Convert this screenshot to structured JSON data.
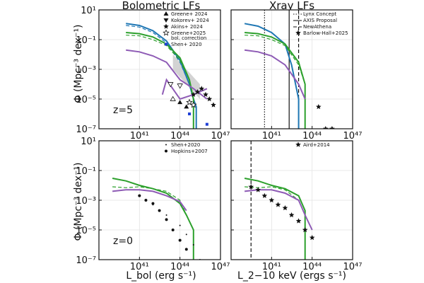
{
  "figure": {
    "background": "#ffffff",
    "titles": [
      "Bolometric LFs",
      "Xray LFs"
    ],
    "ylabel": "Φ (Mpc⁻³ dex⁻¹)",
    "xlabels": [
      "L_bol (erg s⁻¹)",
      "L_2−10 keV (ergs s⁻¹)"
    ],
    "colors": {
      "blue": "#1f77b4",
      "green": "#2ca02c",
      "purple": "#8e5bb5",
      "grey": "#c8c8c8",
      "axis": "#111111"
    }
  },
  "chart_data": [
    {
      "id": "bol_z5",
      "type": "line",
      "log_scale": {
        "x": true,
        "y": true
      },
      "xlim": [
        1e+38,
        1e+47
      ],
      "ylim": [
        1e-07,
        10
      ],
      "xticks": [
        "10⁴¹",
        "10⁴⁴",
        "10⁴⁷"
      ],
      "yticks": [
        "10¹",
        "10⁻¹",
        "10⁻³",
        "10⁻⁵",
        "10⁻⁷"
      ],
      "grid": true,
      "annotation": "z=5",
      "legend": {
        "placement": "top-right",
        "entries": [
          {
            "marker": "triangle-up",
            "label": "Greene+ 2024"
          },
          {
            "marker": "triangle-down",
            "label": "Kokorev+ 2024"
          },
          {
            "marker": "star",
            "label": "Akins+ 2024"
          },
          {
            "marker": "star-open",
            "label": "Greene+2025"
          },
          {
            "marker": "none",
            "label": "bol. correction"
          },
          {
            "marker": "square-blue",
            "label": "Shen+ 2020"
          }
        ]
      },
      "series": [
        {
          "color": "blue",
          "style": "solid",
          "x": [
            1e+40,
            1e+41,
            1e+42,
            1e+43,
            1e+44,
            5e+44,
            1e+45,
            1.6e+45,
            1.6e+45
          ],
          "y": [
            1.2,
            0.9,
            0.4,
            0.08,
            0.004,
            0.0001,
            1e-05,
            3e-06,
            1e-07
          ]
        },
        {
          "color": "blue",
          "style": "dashed",
          "x": [
            1e+40,
            1e+41,
            1e+42,
            1e+43,
            1e+44,
            5e+44,
            1e+45
          ],
          "y": [
            0.9,
            0.7,
            0.3,
            0.06,
            0.003,
            0.0001,
            1e-05
          ]
        },
        {
          "color": "green",
          "style": "solid",
          "x": [
            1e+40,
            1e+41,
            1e+42,
            1e+43,
            1e+44,
            5e+44,
            1e+45,
            1e+45
          ],
          "y": [
            0.3,
            0.25,
            0.15,
            0.05,
            0.006,
            0.0002,
            1e-05,
            1e-07
          ]
        },
        {
          "color": "green",
          "style": "dashed",
          "x": [
            1e+40,
            1e+41,
            1e+42,
            1e+43,
            1e+44,
            5e+44
          ],
          "y": [
            0.2,
            0.18,
            0.1,
            0.04,
            0.004,
            0.0002
          ]
        },
        {
          "color": "purple",
          "style": "solid",
          "x": [
            1e+40,
            1e+41,
            1e+42,
            1e+43,
            1e+44,
            1e+45,
            1e+46
          ],
          "y": [
            0.02,
            0.015,
            0.008,
            0.003,
            0.0002,
            5e-05,
            1e-05
          ]
        },
        {
          "color": "purple",
          "style": "solid",
          "x": [
            5e+42,
            1e+43,
            1e+44,
            1e+45,
            1e+46
          ],
          "y": [
            2e-05,
            0.0002,
            1e-05,
            2e-05,
            5e-05
          ]
        }
      ],
      "points": {
        "triangle-up": [
          [
            1e+44,
            6e-06
          ],
          [
            3e+44,
            3e-06
          ]
        ],
        "triangle-open": [
          [
            3e+43,
            1e-05
          ]
        ],
        "triangle-down-open": [
          [
            2e+43,
            0.0001
          ],
          [
            1e+44,
            8e-05
          ]
        ],
        "star": [
          [
            1e+45,
            2e-05
          ],
          [
            2e+45,
            3e-05
          ],
          [
            4e+45,
            5e-05
          ],
          [
            8e+45,
            2e-05
          ],
          [
            1.5e+46,
            1e-05
          ],
          [
            3e+46,
            4e-06
          ]
        ],
        "star-open": [
          [
            5e+44,
            6e-06
          ],
          [
            1e+45,
            4e-06
          ]
        ],
        "square-blue": [
          [
            5e+44,
            1e-06
          ],
          [
            1e+46,
            2e-07
          ]
        ]
      },
      "band": {
        "x": [
          3e+43,
          3e+44,
          3e+45
        ],
        "y_low": [
          0.001,
          0.0001,
          1e-05
        ],
        "y_high": [
          0.01,
          0.001,
          0.0001
        ]
      }
    },
    {
      "id": "xray_z5",
      "type": "line",
      "log_scale": {
        "x": true,
        "y": true
      },
      "xlim": [
        1e+38,
        1e+47
      ],
      "ylim": [
        1e-07,
        10
      ],
      "xticks": [
        "10⁴¹",
        "10⁴⁴",
        "10⁴⁷"
      ],
      "grid": true,
      "legend": {
        "placement": "top-right",
        "entries": [
          {
            "style": "dotted",
            "label": "Lynx Concept"
          },
          {
            "style": "solid",
            "label": "AXIS Proposal"
          },
          {
            "style": "dashed",
            "label": "NewAthena"
          },
          {
            "marker": "star",
            "label": "Barlow-Hall+2025"
          }
        ]
      },
      "vlines": [
        {
          "x": 3e+40,
          "style": "dotted"
        },
        {
          "x": 2e+42,
          "style": "solid"
        },
        {
          "x": 1e+43,
          "style": "dashed"
        }
      ],
      "series": [
        {
          "color": "blue",
          "style": "solid",
          "x": [
            1e+39,
            1e+40,
            1e+41,
            1e+42,
            3e+42,
            1e+43,
            1e+43
          ],
          "y": [
            1.2,
            0.8,
            0.3,
            0.05,
            0.002,
            1e-05,
            1e-07
          ]
        },
        {
          "color": "green",
          "style": "solid",
          "x": [
            1e+39,
            1e+40,
            1e+41,
            1e+42,
            1e+43,
            3e+43,
            3e+43
          ],
          "y": [
            0.3,
            0.25,
            0.15,
            0.05,
            0.003,
            0.0001,
            1e-07
          ]
        },
        {
          "color": "green",
          "style": "dashed",
          "x": [
            1e+39,
            1e+40,
            1e+41,
            1e+42,
            1e+43,
            3e+43
          ],
          "y": [
            0.2,
            0.18,
            0.1,
            0.04,
            0.002,
            0.0001
          ]
        },
        {
          "color": "purple",
          "style": "solid",
          "x": [
            1e+39,
            1e+40,
            1e+41,
            1e+42,
            1e+43,
            3e+43
          ],
          "y": [
            0.02,
            0.015,
            0.008,
            0.002,
            0.0001,
            1e-05
          ]
        }
      ],
      "points": {
        "star": [
          [
            3e+44,
            3e-06
          ],
          [
            1e+45,
            1e-07
          ],
          [
            3e+45,
            1e-07
          ]
        ]
      }
    },
    {
      "id": "bol_z0",
      "type": "line",
      "log_scale": {
        "x": true,
        "y": true
      },
      "xlim": [
        1e+38,
        1e+47
      ],
      "ylim": [
        1e-07,
        10
      ],
      "xticks": [
        "10⁴¹",
        "10⁴⁴",
        "10⁴⁷"
      ],
      "yticks": [
        "10¹",
        "10⁻¹",
        "10⁻³",
        "10⁻⁵",
        "10⁻⁷"
      ],
      "grid": true,
      "annotation": "z=0",
      "legend": {
        "placement": "top-right",
        "entries": [
          {
            "marker": "dot-small",
            "label": "Shen+2020"
          },
          {
            "marker": "dot",
            "label": "Hopkins+2007"
          }
        ]
      },
      "series": [
        {
          "color": "green",
          "style": "solid",
          "x": [
            1e+39,
            1e+40,
            1e+41,
            1e+42,
            1e+43,
            1e+44,
            3e+44,
            1e+45,
            1e+45
          ],
          "y": [
            0.03,
            0.02,
            0.01,
            0.006,
            0.003,
            0.0006,
            0.0001,
            1e-05,
            1e-07
          ]
        },
        {
          "color": "green",
          "style": "dashed",
          "x": [
            1e+39,
            1e+40,
            1e+41,
            1e+42,
            1e+43,
            1e+44,
            3e+44
          ],
          "y": [
            0.008,
            0.007,
            0.008,
            0.006,
            0.004,
            0.001,
            0.0001
          ]
        },
        {
          "color": "purple",
          "style": "solid",
          "x": [
            1e+39,
            1e+40,
            1e+41,
            1e+42,
            1e+43,
            1e+44,
            3e+44
          ],
          "y": [
            0.004,
            0.005,
            0.005,
            0.004,
            0.002,
            0.0008,
            0.0002
          ]
        }
      ],
      "points": {
        "dot": [
          [
            1e+41,
            0.002
          ],
          [
            3e+41,
            0.001
          ],
          [
            1e+42,
            0.0006
          ],
          [
            3e+42,
            0.0002
          ],
          [
            1e+43,
            5e-05
          ],
          [
            3e+43,
            1e-05
          ],
          [
            1e+44,
            2e-06
          ],
          [
            3e+44,
            5e-07
          ]
        ],
        "dot-small": [
          [
            1e+42,
            0.0005
          ],
          [
            1e+43,
            0.0001
          ],
          [
            1e+44,
            2e-05
          ],
          [
            3e+44,
            5e-06
          ],
          [
            1e+45,
            1e-06
          ],
          [
            3e+45,
            1e-07
          ]
        ]
      }
    },
    {
      "id": "xray_z0",
      "type": "line",
      "log_scale": {
        "x": true,
        "y": true
      },
      "xlim": [
        1e+38,
        1e+47
      ],
      "ylim": [
        1e-07,
        10
      ],
      "xticks": [
        "10⁴¹",
        "10⁴⁴",
        "10⁴⁷"
      ],
      "grid": true,
      "legend": {
        "placement": "top-right",
        "entries": [
          {
            "marker": "star",
            "label": "Aird+2014"
          }
        ]
      },
      "vlines": [
        {
          "x": 3e+39,
          "style": "dashed"
        }
      ],
      "series": [
        {
          "color": "green",
          "style": "solid",
          "x": [
            1e+39,
            1e+40,
            1e+41,
            1e+42,
            1e+43,
            3e+43,
            3e+43
          ],
          "y": [
            0.03,
            0.02,
            0.01,
            0.006,
            0.002,
            0.0002,
            1e-07
          ]
        },
        {
          "color": "green",
          "style": "dashed",
          "x": [
            1e+39,
            1e+40,
            1e+41,
            1e+42,
            1e+43
          ],
          "y": [
            0.008,
            0.007,
            0.008,
            0.005,
            0.001
          ]
        },
        {
          "color": "purple",
          "style": "solid",
          "x": [
            1e+39,
            1e+40,
            1e+41,
            1e+42,
            1e+43,
            3e+43,
            1e+44
          ],
          "y": [
            0.004,
            0.005,
            0.005,
            0.003,
            0.001,
            0.0001,
            1e-05
          ]
        }
      ],
      "points": {
        "star": [
          [
            3e+39,
            0.008
          ],
          [
            1e+40,
            0.005
          ],
          [
            3e+40,
            0.002
          ],
          [
            1e+41,
            0.001
          ],
          [
            3e+41,
            0.0005
          ],
          [
            1e+42,
            0.0003
          ],
          [
            3e+42,
            0.0001
          ],
          [
            1e+43,
            4e-05
          ],
          [
            3e+43,
            1e-05
          ],
          [
            1e+44,
            3e-06
          ]
        ]
      }
    }
  ]
}
